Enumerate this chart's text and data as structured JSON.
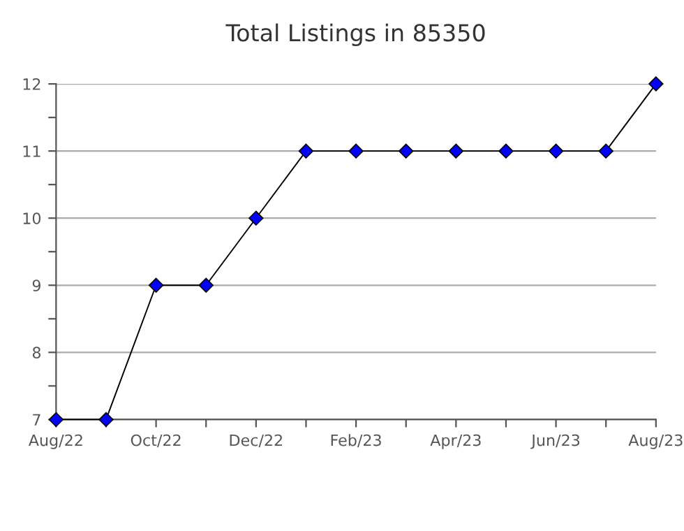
{
  "chart_data": {
    "type": "line",
    "title": "Total Listings in 85350",
    "categories": [
      "Aug/22",
      null,
      "Oct/22",
      null,
      "Dec/22",
      null,
      "Feb/23",
      null,
      "Apr/23",
      null,
      "Jun/23",
      null,
      "Aug/23"
    ],
    "series": [
      {
        "color": "#0000ff",
        "values": [
          7,
          7,
          9,
          9,
          10,
          11,
          11,
          11,
          11,
          11,
          11,
          11,
          12
        ]
      }
    ],
    "ylim": [
      7,
      12
    ],
    "yticks": [
      7,
      {
        "value": 7.5,
        "label": null
      },
      8,
      {
        "value": 8.5,
        "label": null
      },
      9,
      {
        "value": 9.5,
        "label": null
      },
      10,
      {
        "value": 10.5,
        "label": null
      },
      11,
      {
        "value": 11.5,
        "label": null
      },
      12
    ],
    "grid": "y",
    "marker": "diamond",
    "line_style": "solid",
    "legend": false
  }
}
